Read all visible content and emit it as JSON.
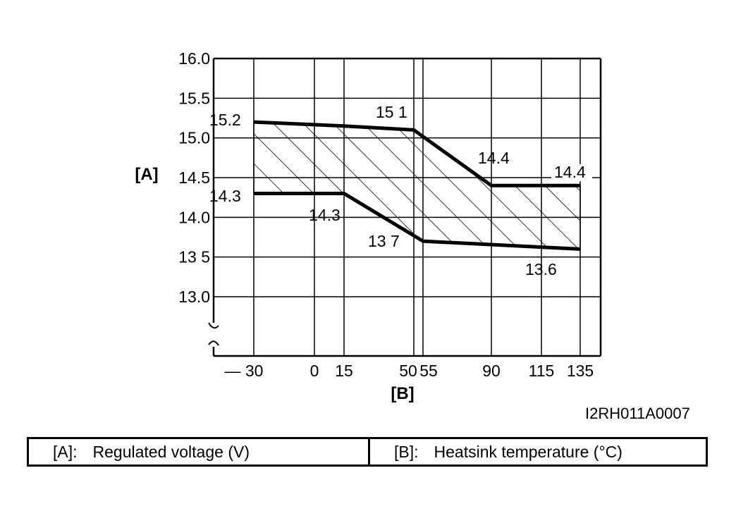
{
  "chart_data": {
    "type": "area",
    "xlabel": "[B]",
    "ylabel": "[A]",
    "x_ticks": [
      -30,
      0,
      15,
      50,
      55,
      90,
      115,
      135
    ],
    "x_tick_labels": [
      "— 30",
      "0",
      "15",
      "50",
      "55",
      "90",
      "115",
      "135"
    ],
    "y_ticks": [
      13.0,
      13.5,
      14.0,
      14.5,
      15.0,
      15.5,
      16.0
    ],
    "y_tick_labels": [
      "13.0",
      "13 5",
      "14.0",
      "14.5",
      "15.0",
      "15.5",
      "16.0"
    ],
    "xlim": [
      -30,
      135
    ],
    "ylim": [
      12.25,
      16.0
    ],
    "y_axis_break": true,
    "grid": true,
    "series": [
      {
        "x": [
          -30,
          15,
          50,
          90,
          135
        ],
        "values": [
          15.2,
          15.15,
          15.1,
          14.4,
          14.4
        ]
      },
      {
        "x": [
          -30,
          15,
          55,
          135
        ],
        "values": [
          14.3,
          14.3,
          13.7,
          13.6
        ]
      }
    ],
    "shaded_region_between_series": true,
    "annotations": [
      {
        "text": "15.2"
      },
      {
        "text": "15 1"
      },
      {
        "text": "14.4"
      },
      {
        "text": "14.4"
      },
      {
        "text": "14.3"
      },
      {
        "text": "14.3"
      },
      {
        "text": "13 7"
      },
      {
        "text": "13.6"
      }
    ]
  },
  "figure_code": "I2RH011A0007",
  "legend": {
    "a_key": "[A]:",
    "a_text": "Regulated voltage (V)",
    "b_key": "[B]:",
    "b_text": "Heatsink temperature (°C)"
  }
}
